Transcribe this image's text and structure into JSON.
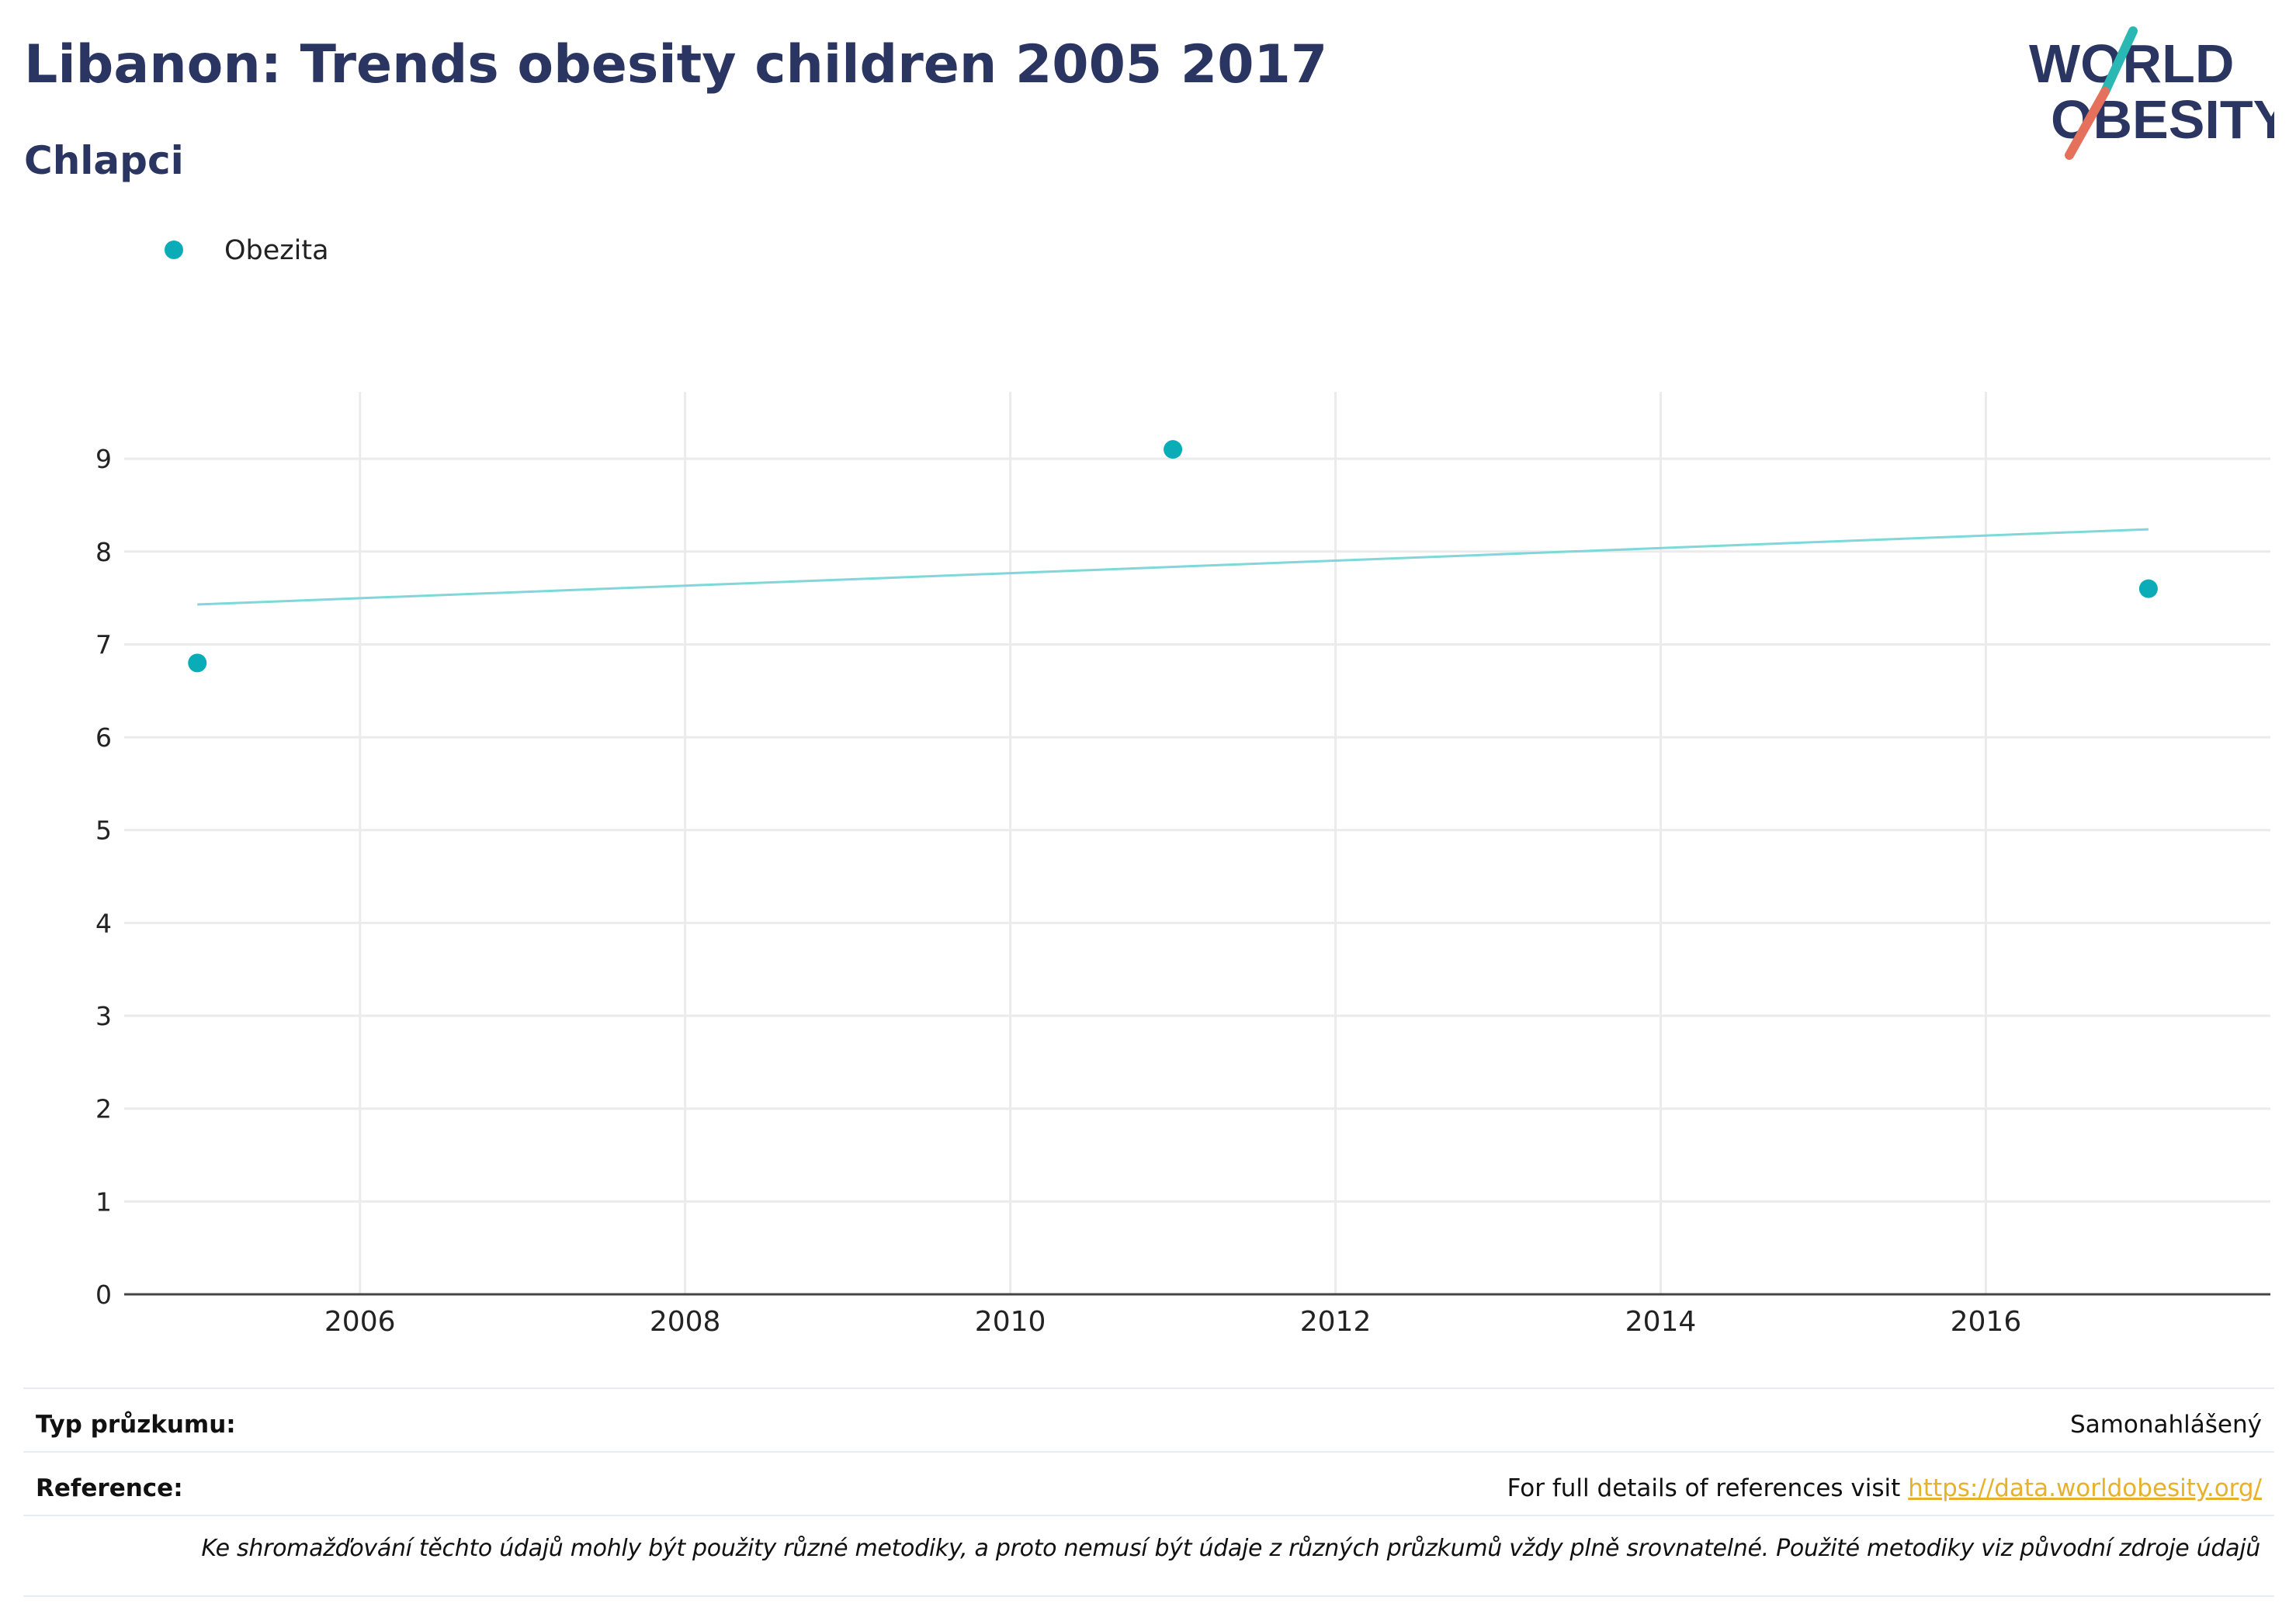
{
  "header": {
    "title": "Libanon: Trends obesity children 2005 2017",
    "subtitle": "Chlapci"
  },
  "logo": {
    "line1": "WORLD",
    "line2": "OBESITY",
    "colors": {
      "text": "#2a3562",
      "slash_top": "#2bb7b3",
      "slash_bottom": "#e5715d"
    }
  },
  "chart_data": {
    "type": "scatter",
    "title": "",
    "xlabel": "",
    "ylabel": "",
    "xlim": [
      2004.55,
      2017.75
    ],
    "ylim": [
      0,
      9.72
    ],
    "x_ticks": [
      2006,
      2008,
      2010,
      2012,
      2014,
      2016
    ],
    "y_ticks": [
      0,
      1,
      2,
      3,
      4,
      5,
      6,
      7,
      8,
      9
    ],
    "grid": true,
    "legend_position": "top-left",
    "series": [
      {
        "name": "Obezita",
        "color": "#0aacb8",
        "points": [
          {
            "x": 2005,
            "y": 6.8
          },
          {
            "x": 2011,
            "y": 9.1
          },
          {
            "x": 2017,
            "y": 7.6
          }
        ]
      }
    ],
    "trendline": {
      "color": "#7ed8d9",
      "points": [
        {
          "x": 2005,
          "y": 7.43
        },
        {
          "x": 2017,
          "y": 8.24
        }
      ]
    }
  },
  "footer": {
    "survey_type_label": "Typ průzkumu:",
    "survey_type_value": "Samonahlášený",
    "reference_label": "Reference:",
    "reference_text": "For full details of references visit",
    "reference_link": "https://data.worldobesity.org/",
    "disclaimer": "Ke shromažďování těchto údajů mohly být použity různé metodiky, a proto nemusí být údaje z různých průzkumů vždy plně srovnatelné. Použité metodiky viz původní zdroje údajů"
  }
}
